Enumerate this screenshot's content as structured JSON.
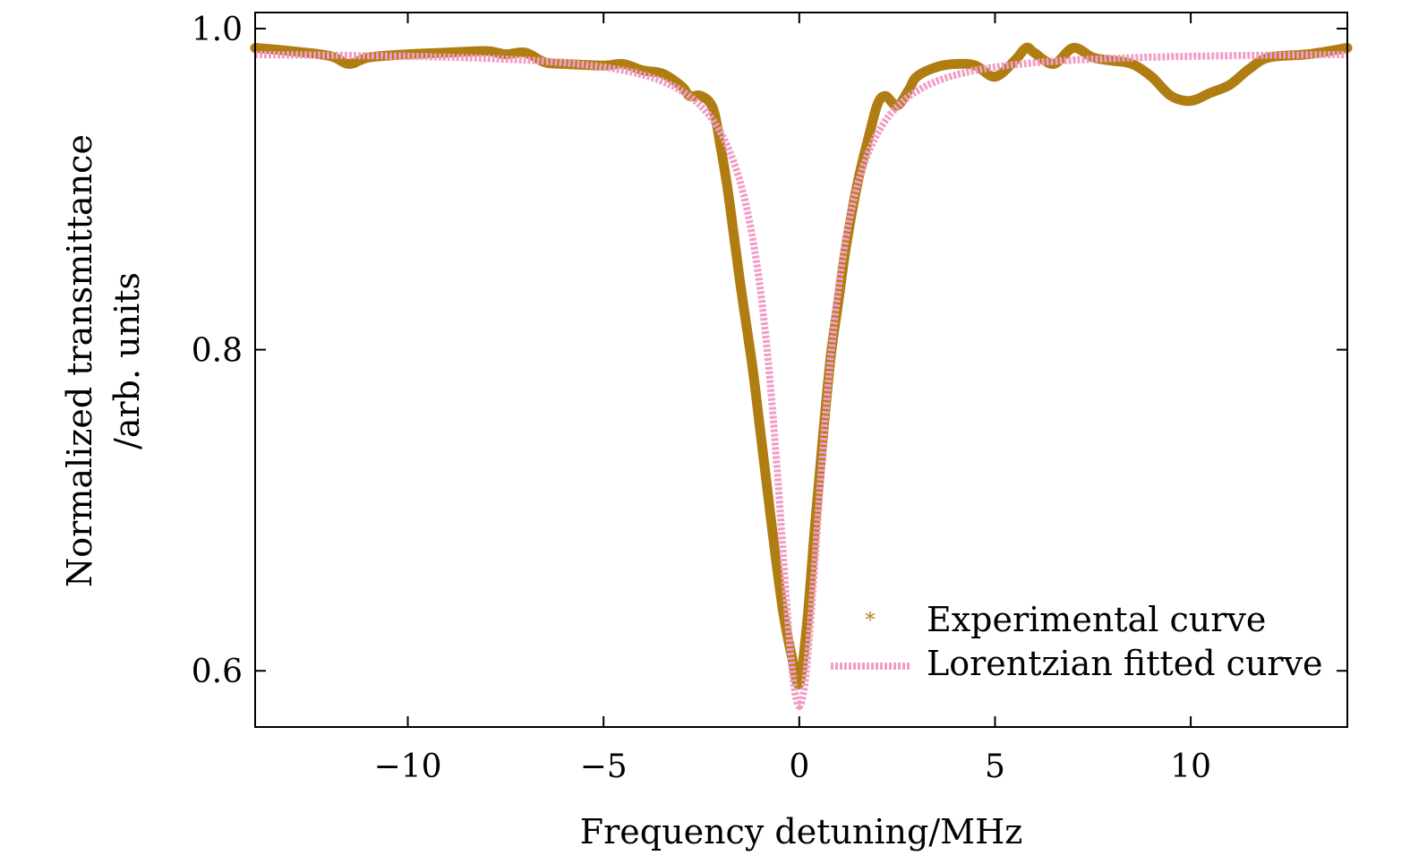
{
  "chart_data": {
    "type": "line",
    "title": "",
    "xlabel": "Frequency detuning/MHz",
    "ylabel_line1": "Normalized transmittance",
    "ylabel_line2": "/arb. units",
    "xlim": [
      -13.9,
      14.0
    ],
    "ylim": [
      0.565,
      1.01
    ],
    "x_ticks": [
      -10,
      -5,
      0,
      5,
      10
    ],
    "x_tick_labels": [
      "−10",
      "−5",
      "0",
      "5",
      "10"
    ],
    "y_ticks": [
      0.6,
      0.8,
      1.0
    ],
    "y_tick_labels": [
      "0.6",
      "0.8",
      "1.0"
    ],
    "grid": false,
    "legend_position": "lower-right",
    "series": [
      {
        "name": "Experimental curve",
        "color": "#b07d12",
        "style": "solid",
        "marker": "*",
        "x": [
          -13.9,
          -13,
          -12,
          -11.5,
          -11,
          -10,
          -9,
          -8,
          -7.5,
          -7,
          -6.5,
          -6,
          -5,
          -4.5,
          -4,
          -3.5,
          -3,
          -2.8,
          -2.5,
          -2.2,
          -2.0,
          -1.8,
          -1.5,
          -1.2,
          -1.0,
          -0.8,
          -0.6,
          -0.4,
          -0.2,
          0,
          0.2,
          0.4,
          0.6,
          0.8,
          1.0,
          1.2,
          1.5,
          1.8,
          2.0,
          2.2,
          2.5,
          2.8,
          3.0,
          3.5,
          4.0,
          4.5,
          5.0,
          5.5,
          5.8,
          6.0,
          6.5,
          7.0,
          7.5,
          8.0,
          8.5,
          9.0,
          9.5,
          10.0,
          10.5,
          11.0,
          11.5,
          12.0,
          13.0,
          14.0
        ],
        "y": [
          0.988,
          0.986,
          0.983,
          0.978,
          0.982,
          0.984,
          0.985,
          0.986,
          0.984,
          0.985,
          0.979,
          0.978,
          0.977,
          0.978,
          0.974,
          0.972,
          0.964,
          0.958,
          0.958,
          0.95,
          0.925,
          0.895,
          0.84,
          0.79,
          0.75,
          0.71,
          0.67,
          0.635,
          0.61,
          0.592,
          0.63,
          0.69,
          0.745,
          0.795,
          0.83,
          0.865,
          0.905,
          0.935,
          0.953,
          0.958,
          0.952,
          0.962,
          0.97,
          0.976,
          0.978,
          0.977,
          0.97,
          0.98,
          0.988,
          0.985,
          0.978,
          0.988,
          0.982,
          0.98,
          0.978,
          0.97,
          0.958,
          0.955,
          0.96,
          0.965,
          0.975,
          0.982,
          0.984,
          0.988
        ]
      },
      {
        "name": "Lorentzian fitted curve",
        "color": "#f29cc6",
        "style": "dashed",
        "function": "lorentzian",
        "baseline": 0.985,
        "depth": 0.407,
        "center": 0.0,
        "hwhm": 0.75,
        "x_range": [
          -13.9,
          14.0
        ]
      }
    ]
  }
}
